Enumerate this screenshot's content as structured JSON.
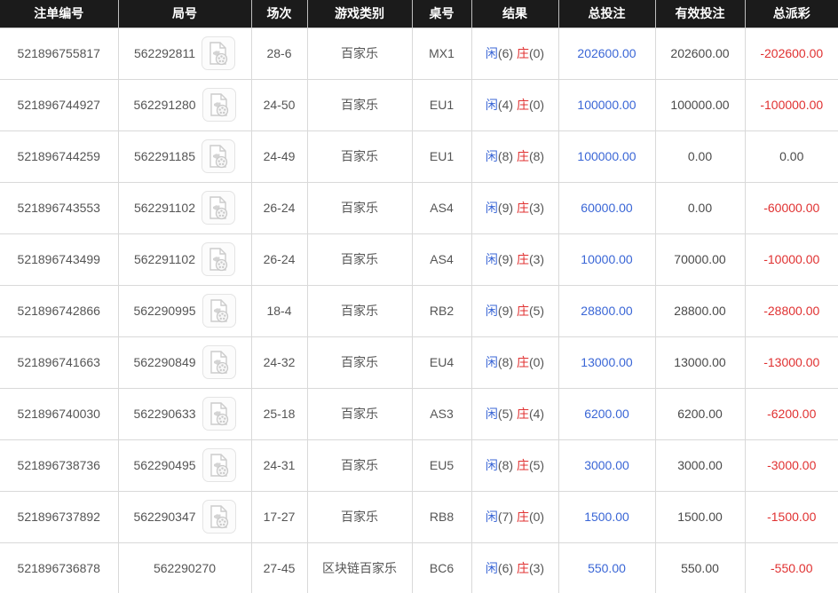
{
  "table": {
    "columns": [
      {
        "key": "order_id",
        "label": "注单编号"
      },
      {
        "key": "round_id",
        "label": "局号"
      },
      {
        "key": "session",
        "label": "场次"
      },
      {
        "key": "game_type",
        "label": "游戏类别"
      },
      {
        "key": "table_no",
        "label": "桌号"
      },
      {
        "key": "result",
        "label": "结果"
      },
      {
        "key": "total_bet",
        "label": "总投注"
      },
      {
        "key": "valid_bet",
        "label": "有效投注"
      },
      {
        "key": "payout",
        "label": "总派彩"
      }
    ],
    "result_labels": {
      "player": "闲",
      "banker": "庄"
    },
    "icons": {
      "round_video": "video-file-icon"
    },
    "colors": {
      "header_bg": "#1b1b1b",
      "header_text": "#ffffff",
      "grid_border": "#d9d9d9",
      "cell_text": "#555555",
      "link_blue": "#3a66d6",
      "loss_red": "#e03131",
      "player_blue": "#3a66d6",
      "banker_red": "#d9342f"
    },
    "rows": [
      {
        "order_id": "521896755817",
        "round_id": "562292811",
        "has_video_icon": true,
        "session": "28-6",
        "game_type": "百家乐",
        "table_no": "MX1",
        "player_points": "(6)",
        "banker_points": "(0)",
        "total_bet": "202600.00",
        "valid_bet": "202600.00",
        "payout": "-202600.00"
      },
      {
        "order_id": "521896744927",
        "round_id": "562291280",
        "has_video_icon": true,
        "session": "24-50",
        "game_type": "百家乐",
        "table_no": "EU1",
        "player_points": "(4)",
        "banker_points": "(0)",
        "total_bet": "100000.00",
        "valid_bet": "100000.00",
        "payout": "-100000.00"
      },
      {
        "order_id": "521896744259",
        "round_id": "562291185",
        "has_video_icon": true,
        "session": "24-49",
        "game_type": "百家乐",
        "table_no": "EU1",
        "player_points": "(8)",
        "banker_points": "(8)",
        "total_bet": "100000.00",
        "valid_bet": "0.00",
        "payout": "0.00"
      },
      {
        "order_id": "521896743553",
        "round_id": "562291102",
        "has_video_icon": true,
        "session": "26-24",
        "game_type": "百家乐",
        "table_no": "AS4",
        "player_points": "(9)",
        "banker_points": "(3)",
        "total_bet": "60000.00",
        "valid_bet": "0.00",
        "payout": "-60000.00"
      },
      {
        "order_id": "521896743499",
        "round_id": "562291102",
        "has_video_icon": true,
        "session": "26-24",
        "game_type": "百家乐",
        "table_no": "AS4",
        "player_points": "(9)",
        "banker_points": "(3)",
        "total_bet": "10000.00",
        "valid_bet": "70000.00",
        "payout": "-10000.00"
      },
      {
        "order_id": "521896742866",
        "round_id": "562290995",
        "has_video_icon": true,
        "session": "18-4",
        "game_type": "百家乐",
        "table_no": "RB2",
        "player_points": "(9)",
        "banker_points": "(5)",
        "total_bet": "28800.00",
        "valid_bet": "28800.00",
        "payout": "-28800.00"
      },
      {
        "order_id": "521896741663",
        "round_id": "562290849",
        "has_video_icon": true,
        "session": "24-32",
        "game_type": "百家乐",
        "table_no": "EU4",
        "player_points": "(8)",
        "banker_points": "(0)",
        "total_bet": "13000.00",
        "valid_bet": "13000.00",
        "payout": "-13000.00"
      },
      {
        "order_id": "521896740030",
        "round_id": "562290633",
        "has_video_icon": true,
        "session": "25-18",
        "game_type": "百家乐",
        "table_no": "AS3",
        "player_points": "(5)",
        "banker_points": "(4)",
        "total_bet": "6200.00",
        "valid_bet": "6200.00",
        "payout": "-6200.00"
      },
      {
        "order_id": "521896738736",
        "round_id": "562290495",
        "has_video_icon": true,
        "session": "24-31",
        "game_type": "百家乐",
        "table_no": "EU5",
        "player_points": "(8)",
        "banker_points": "(5)",
        "total_bet": "3000.00",
        "valid_bet": "3000.00",
        "payout": "-3000.00"
      },
      {
        "order_id": "521896737892",
        "round_id": "562290347",
        "has_video_icon": true,
        "session": "17-27",
        "game_type": "百家乐",
        "table_no": "RB8",
        "player_points": "(7)",
        "banker_points": "(0)",
        "total_bet": "1500.00",
        "valid_bet": "1500.00",
        "payout": "-1500.00"
      },
      {
        "order_id": "521896736878",
        "round_id": "562290270",
        "has_video_icon": false,
        "session": "27-45",
        "game_type": "区块链百家乐",
        "table_no": "BC6",
        "player_points": "(6)",
        "banker_points": "(3)",
        "total_bet": "550.00",
        "valid_bet": "550.00",
        "payout": "-550.00"
      }
    ]
  }
}
